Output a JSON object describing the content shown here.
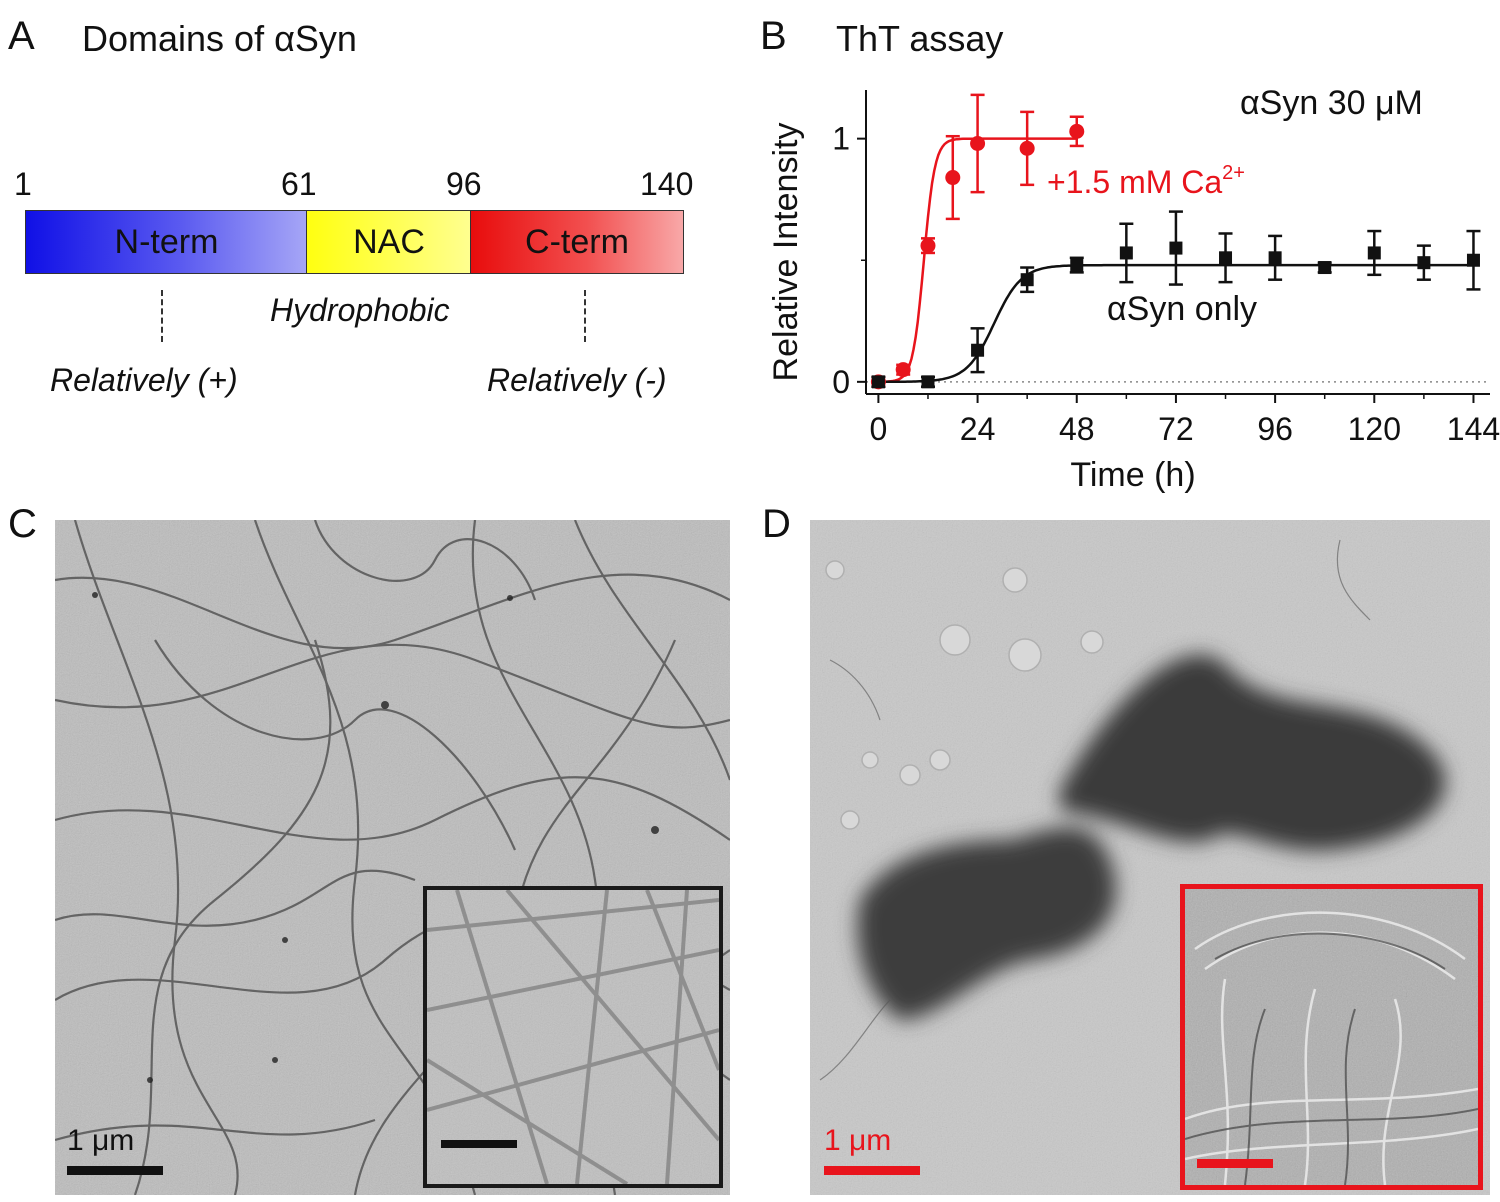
{
  "panelA": {
    "label": "A",
    "title": "Domains of αSyn",
    "residues": [
      "1",
      "61",
      "96",
      "140"
    ],
    "domains": [
      {
        "name": "N-term",
        "start": 1,
        "end": 61
      },
      {
        "name": "NAC",
        "start": 61,
        "end": 96
      },
      {
        "name": "C-term",
        "start": 96,
        "end": 140
      }
    ],
    "annotations": {
      "hydrophobic": "Hydrophobic",
      "nterm": "Relatively (+)",
      "cterm": "Relatively (-)"
    },
    "colors": {
      "nterm": "#2a2aee",
      "nac": "#ffff3a",
      "cterm": "#ee1c1c"
    }
  },
  "panelB": {
    "label": "B",
    "title": "ThT assay",
    "concentration": "αSyn 30 μM",
    "calcium_label": "+1.5 mM Ca",
    "calcium_sup": "2+",
    "only_label": "αSyn only"
  },
  "chart_data": {
    "type": "scatter",
    "xlabel": "Time (h)",
    "ylabel": "Relative Intensity",
    "xlim": [
      -3,
      148
    ],
    "ylim": [
      -0.05,
      1.2
    ],
    "xticks": [
      0,
      24,
      48,
      72,
      96,
      120,
      144
    ],
    "yticks": [
      0,
      1
    ],
    "series": [
      {
        "name": "+1.5 mM Ca2+",
        "color": "#e8141c",
        "marker": "circle",
        "x": [
          0,
          6,
          12,
          18,
          24,
          36,
          48
        ],
        "y": [
          0.0,
          0.05,
          0.56,
          0.84,
          0.98,
          0.96,
          1.03
        ],
        "err": [
          0.02,
          0.02,
          0.03,
          0.17,
          0.2,
          0.15,
          0.06
        ]
      },
      {
        "name": "αSyn only",
        "color": "#111111",
        "marker": "square",
        "x": [
          0,
          12,
          24,
          36,
          48,
          60,
          72,
          84,
          96,
          108,
          120,
          132,
          144
        ],
        "y": [
          0.0,
          0.0,
          0.13,
          0.42,
          0.48,
          0.53,
          0.55,
          0.51,
          0.51,
          0.47,
          0.53,
          0.49,
          0.5
        ],
        "err": [
          0.02,
          0.02,
          0.09,
          0.05,
          0.03,
          0.12,
          0.15,
          0.1,
          0.09,
          0.02,
          0.09,
          0.07,
          0.12
        ]
      }
    ],
    "fits": [
      {
        "color": "#e8141c",
        "x0": 11,
        "k": 0.75,
        "top": 1.0,
        "xmax": 48
      },
      {
        "color": "#111111",
        "x0": 28,
        "k": 0.3,
        "top": 0.48,
        "xmax": 144
      }
    ]
  },
  "panelC": {
    "label": "C",
    "scalebar": "1 μm",
    "color": "#111111"
  },
  "panelD": {
    "label": "D",
    "scalebar": "1 μm",
    "color": "#e8141c"
  }
}
